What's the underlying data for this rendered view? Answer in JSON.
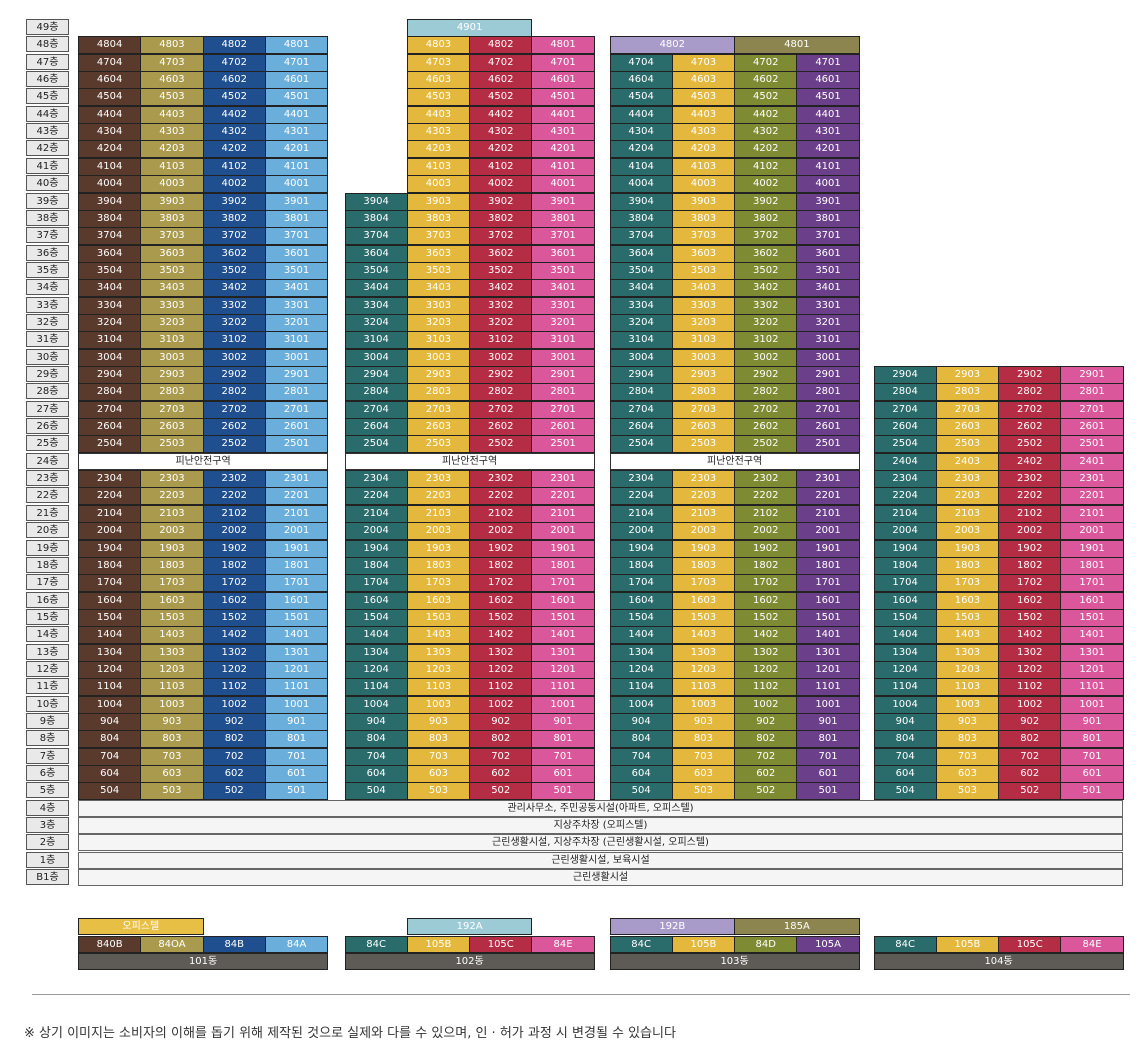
{
  "floors": [
    "49층",
    "48층",
    "47층",
    "46층",
    "45층",
    "44층",
    "43층",
    "42층",
    "41층",
    "40층",
    "39층",
    "38층",
    "37층",
    "36층",
    "35층",
    "34층",
    "33층",
    "32층",
    "31층",
    "30층",
    "29층",
    "28층",
    "27층",
    "26층",
    "25층",
    "24층",
    "23층",
    "22층",
    "21층",
    "20층",
    "19층",
    "18층",
    "17층",
    "16층",
    "15층",
    "14층",
    "13층",
    "12층",
    "11층",
    "10층",
    "9층",
    "8층",
    "7층",
    "6층",
    "5층",
    "4층",
    "3층",
    "2층",
    "1층",
    "B1층"
  ],
  "refuge_label": "피난안전구역",
  "common_floors": [
    {
      "floor": "4층",
      "label": "관리사무소, 주민공동시설(아파트, 오피스텔)"
    },
    {
      "floor": "3층",
      "label": "지상주차장 (오피스텔)"
    },
    {
      "floor": "2층",
      "label": "근린생활시설, 지상주차장 (근린생활시설, 오피스텔)"
    },
    {
      "floor": "1층",
      "label": "근린생활시설, 보육시설"
    },
    {
      "floor": "B1층",
      "label": "근린생활시설"
    }
  ],
  "colors": {
    "840B": "#5a3a2c",
    "84OA": "#a99a4e",
    "84B": "#1f4f8f",
    "84A": "#6aaedc",
    "84C": "#2a6b6b",
    "105B": "#e4b83c",
    "105C": "#b52c45",
    "84E": "#d9579a",
    "84D": "#7f8b32",
    "105A": "#6b3f8a",
    "192A": "#9ccbd6",
    "192B": "#a99bc9",
    "185A": "#8c8550",
    "officetel": "#e8bf45"
  },
  "buildings": [
    {
      "name": "101동",
      "top_floor": 48,
      "columns": [
        {
          "type": "840B",
          "unit": 4
        },
        {
          "type": "84OA",
          "unit": 3
        },
        {
          "type": "84B",
          "unit": 2
        },
        {
          "type": "84A",
          "unit": 1
        }
      ],
      "refuge_floor": 24,
      "legend_top": [
        {
          "label": "오피스텔",
          "type": "officetel",
          "span": 2
        }
      ]
    },
    {
      "name": "102동",
      "column_tops": [
        39,
        48,
        48,
        48
      ],
      "columns": [
        {
          "type": "84C",
          "unit": 4
        },
        {
          "type": "105B",
          "unit": 3
        },
        {
          "type": "105C",
          "unit": 2
        },
        {
          "type": "84E",
          "unit": 1
        }
      ],
      "penthouse": {
        "label": "4901",
        "type": "192A"
      },
      "refuge_floor": 24,
      "legend_top": [
        {
          "label": "192A",
          "type": "192A",
          "span": 2,
          "offset": 1
        }
      ]
    },
    {
      "name": "103동",
      "top_floor": 47,
      "columns": [
        {
          "type": "84C",
          "unit": 4
        },
        {
          "type": "105B",
          "unit": 3
        },
        {
          "type": "84D",
          "unit": 2
        },
        {
          "type": "105A",
          "unit": 1
        }
      ],
      "top_units": [
        {
          "label": "4802",
          "type": "192B"
        },
        {
          "label": "4801",
          "type": "185A"
        }
      ],
      "refuge_floor": 24,
      "legend_top": [
        {
          "label": "192B",
          "type": "192B",
          "span": 2
        },
        {
          "label": "185A",
          "type": "185A",
          "span": 2
        }
      ]
    },
    {
      "name": "104동",
      "top_floor": 29,
      "columns": [
        {
          "type": "84C",
          "unit": 4
        },
        {
          "type": "105B",
          "unit": 3
        },
        {
          "type": "105C",
          "unit": 2
        },
        {
          "type": "84E",
          "unit": 1
        }
      ],
      "refuge_floor": null,
      "legend_top": []
    }
  ],
  "footnote": "※ 상기 이미지는 소비자의 이해를 돕기 위해 제작된 것으로 실제와 다를 수 있으며, 인 · 허가 과정 시 변경될 수 있습니다"
}
